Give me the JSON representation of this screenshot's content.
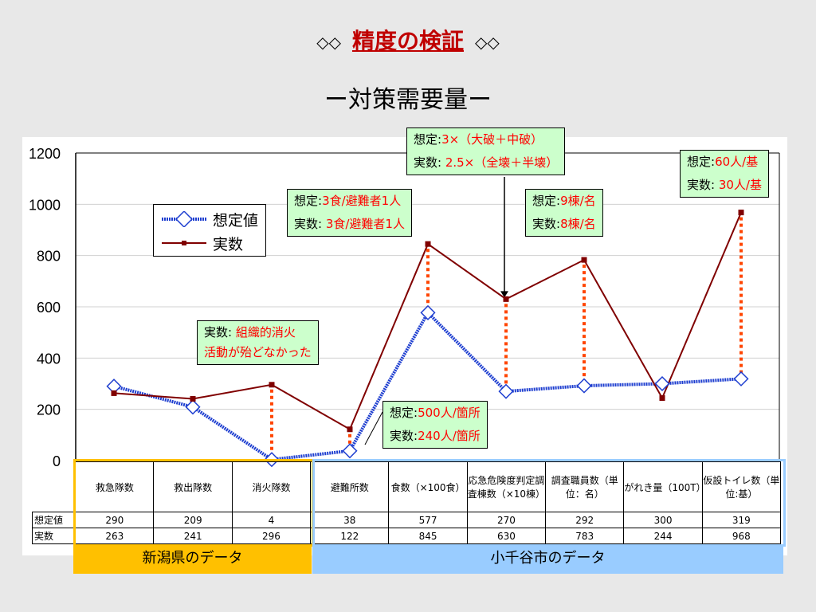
{
  "slide": {
    "title_prefix": "◇◇",
    "title": "精度の検証",
    "title_suffix": "◇◇",
    "subtitle": "ー対策需要量ー"
  },
  "legend": {
    "series1": "想定値",
    "series2": "実数"
  },
  "callouts": {
    "c1": {
      "label1": "想定:",
      "value1": "3×（大破＋中破）",
      "label2": "実数: ",
      "value2": "2.5×（全壊＋半壊）"
    },
    "c2": {
      "label1": "想定:",
      "value1": "60人/基",
      "label2": "実数: ",
      "value2": "30人/基"
    },
    "c3": {
      "label1": "想定:",
      "value1": "3食/避難者1人",
      "label2": "実数: ",
      "value2": "3食/避難者1人"
    },
    "c4": {
      "label1": "想定:",
      "value1": "9棟/名",
      "label2": "実数:",
      "value2": "8棟/名"
    },
    "c5": {
      "label1": "実数: ",
      "value1": "組織的消火",
      "value2": "活動が殆どなかった"
    },
    "c6": {
      "label1": "想定:",
      "value1": "500人/箇所",
      "label2": "実数:",
      "value2": "240人/箇所"
    }
  },
  "groups": {
    "niigata": "新潟県のデータ",
    "ojiya": "小千谷市のデータ"
  },
  "table": {
    "headers": [
      "救急隊数",
      "救出隊数",
      "消火隊数",
      "避難所数",
      "食数（×100食）",
      "応急危険度判定調査棟数（×10棟）",
      "調査職員数（単位：名）",
      "がれき量（100T）",
      "仮設トイレ数（単位:基）"
    ],
    "row1_label": "想定値",
    "row1": [
      "290",
      "209",
      "4",
      "38",
      "577",
      "270",
      "292",
      "300",
      "319"
    ],
    "row2_label": "実数",
    "row2": [
      "263",
      "241",
      "296",
      "122",
      "845",
      "630",
      "783",
      "244",
      "968"
    ]
  },
  "colors": {
    "assumed": "#1f3fd0",
    "actual": "#800000",
    "gap": "#ff4500",
    "niigata": "#ffc000",
    "ojiya": "#99ccff"
  },
  "chart_data": {
    "type": "line",
    "categories": [
      "救急隊数",
      "救出隊数",
      "消火隊数",
      "避難所数",
      "食数（×100食）",
      "応急危険度判定調査棟数（×10棟）",
      "調査職員数（単位：名）",
      "がれき量（100T）",
      "仮設トイレ数（単位:基）"
    ],
    "series": [
      {
        "name": "想定値",
        "values": [
          290,
          209,
          4,
          38,
          577,
          270,
          292,
          300,
          319
        ],
        "marker": "diamond-open"
      },
      {
        "name": "実数",
        "values": [
          263,
          241,
          296,
          122,
          845,
          630,
          783,
          244,
          968
        ],
        "marker": "square"
      }
    ],
    "yticks": [
      "0",
      "200",
      "400",
      "600",
      "800",
      "1000",
      "1200"
    ],
    "ylim": [
      0,
      1200
    ],
    "grid": true,
    "legend": "top-left"
  }
}
